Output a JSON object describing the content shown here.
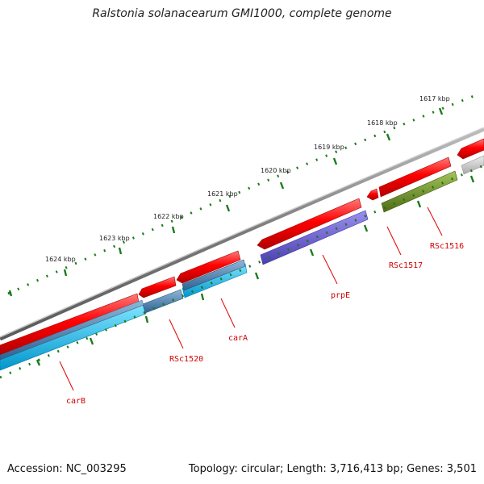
{
  "title": "Ralstonia solanacearum GMI1000, complete genome",
  "footer": {
    "accession": "Accession: NC_003295",
    "summary": "Topology: circular; Length: 3,716,413 bp; Genes: 3,501"
  },
  "scale_labels": [
    "1617 kbp",
    "1618 kbp",
    "1619 kbp",
    "1620 kbp",
    "1621 kbp",
    "1622 kbp",
    "1623 kbp",
    "1624 kbp"
  ],
  "genes": [
    {
      "label": "RSc1516",
      "color": "#6b8e23"
    },
    {
      "label": "RSc1517",
      "color": "#ff0000"
    },
    {
      "label": "prpE",
      "color": "#6a5acd"
    },
    {
      "label": "carA",
      "color": "#4682b4"
    },
    {
      "label": "RSc1520",
      "color": "#4682b4"
    },
    {
      "label": "carB",
      "color": "#00bfff"
    }
  ],
  "colors": {
    "backbone": "#808080",
    "cds": "#ff0000",
    "ticks": "#1a7a1a",
    "label_text": "#d10000"
  }
}
